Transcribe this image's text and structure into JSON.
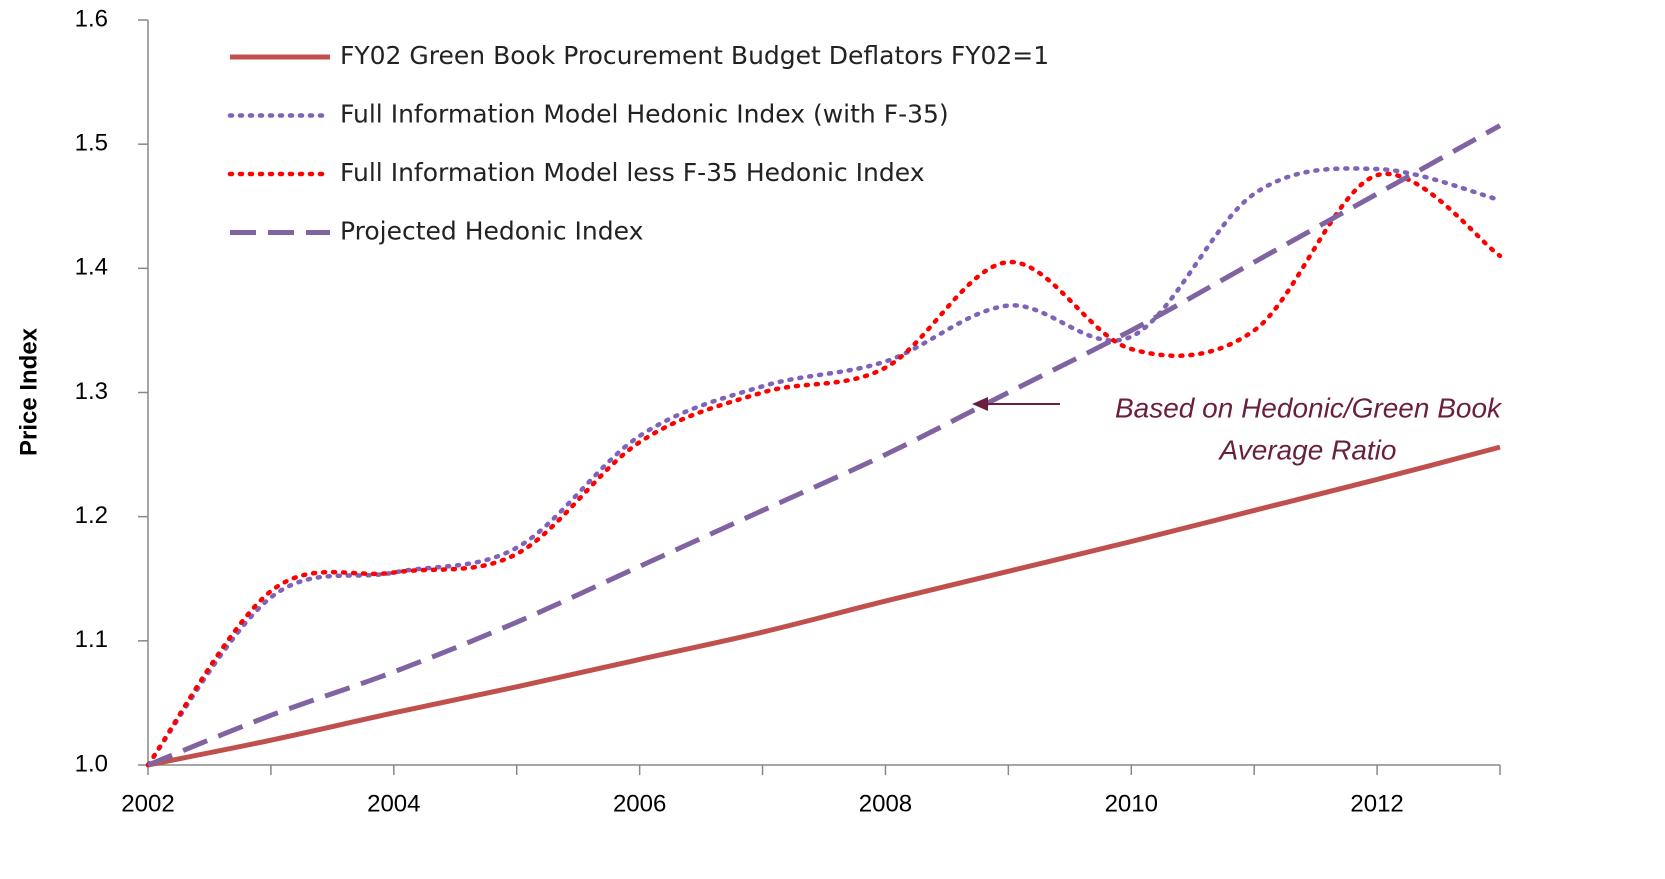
{
  "chart_data": {
    "type": "line",
    "y_label": "Price Index",
    "x": [
      2002,
      2003,
      2004,
      2005,
      2006,
      2007,
      2008,
      2009,
      2010,
      2011,
      2012,
      2013
    ],
    "series": [
      {
        "name": "FY02 Green Book Procurement Budget Deflators FY02=1",
        "color": "#c0504d",
        "style": "solid",
        "values": [
          1.0,
          1.02,
          1.042,
          1.063,
          1.085,
          1.107,
          1.132,
          1.156,
          1.18,
          1.205,
          1.23,
          1.256
        ]
      },
      {
        "name": "Full Information Model Hedonic Index (with F-35)",
        "color": "#7f63b8",
        "style": "dotted",
        "values": [
          1.0,
          1.135,
          1.155,
          1.175,
          1.265,
          1.305,
          1.325,
          1.37,
          1.345,
          1.46,
          1.48,
          1.455
        ]
      },
      {
        "name": "Full Information Model less F-35 Hedonic Index",
        "color": "#ff0000",
        "style": "dotted",
        "values": [
          1.0,
          1.14,
          1.155,
          1.17,
          1.26,
          1.3,
          1.32,
          1.405,
          1.335,
          1.35,
          1.475,
          1.41
        ]
      },
      {
        "name": "Projected Hedonic Index",
        "color": "#8064a2",
        "style": "dashed",
        "values": [
          1.0,
          1.04,
          1.075,
          1.115,
          1.16,
          1.205,
          1.25,
          1.3,
          1.35,
          1.405,
          1.46,
          1.515
        ]
      }
    ],
    "annotation": [
      "Based on Hedonic/Green Book",
      "Average Ratio"
    ],
    "xlim": [
      2002,
      2013
    ],
    "xticks": [
      2002,
      2004,
      2006,
      2008,
      2010,
      2012
    ],
    "xminor_ticks": [
      2003,
      2005,
      2007,
      2009,
      2011,
      2013
    ],
    "ylim": [
      1.0,
      1.6
    ],
    "yticks": [
      {
        "value": 1.0,
        "label": "1.0"
      },
      1.1,
      1.2,
      1.3,
      1.4,
      1.5,
      1.6
    ],
    "legend": "upper left"
  }
}
